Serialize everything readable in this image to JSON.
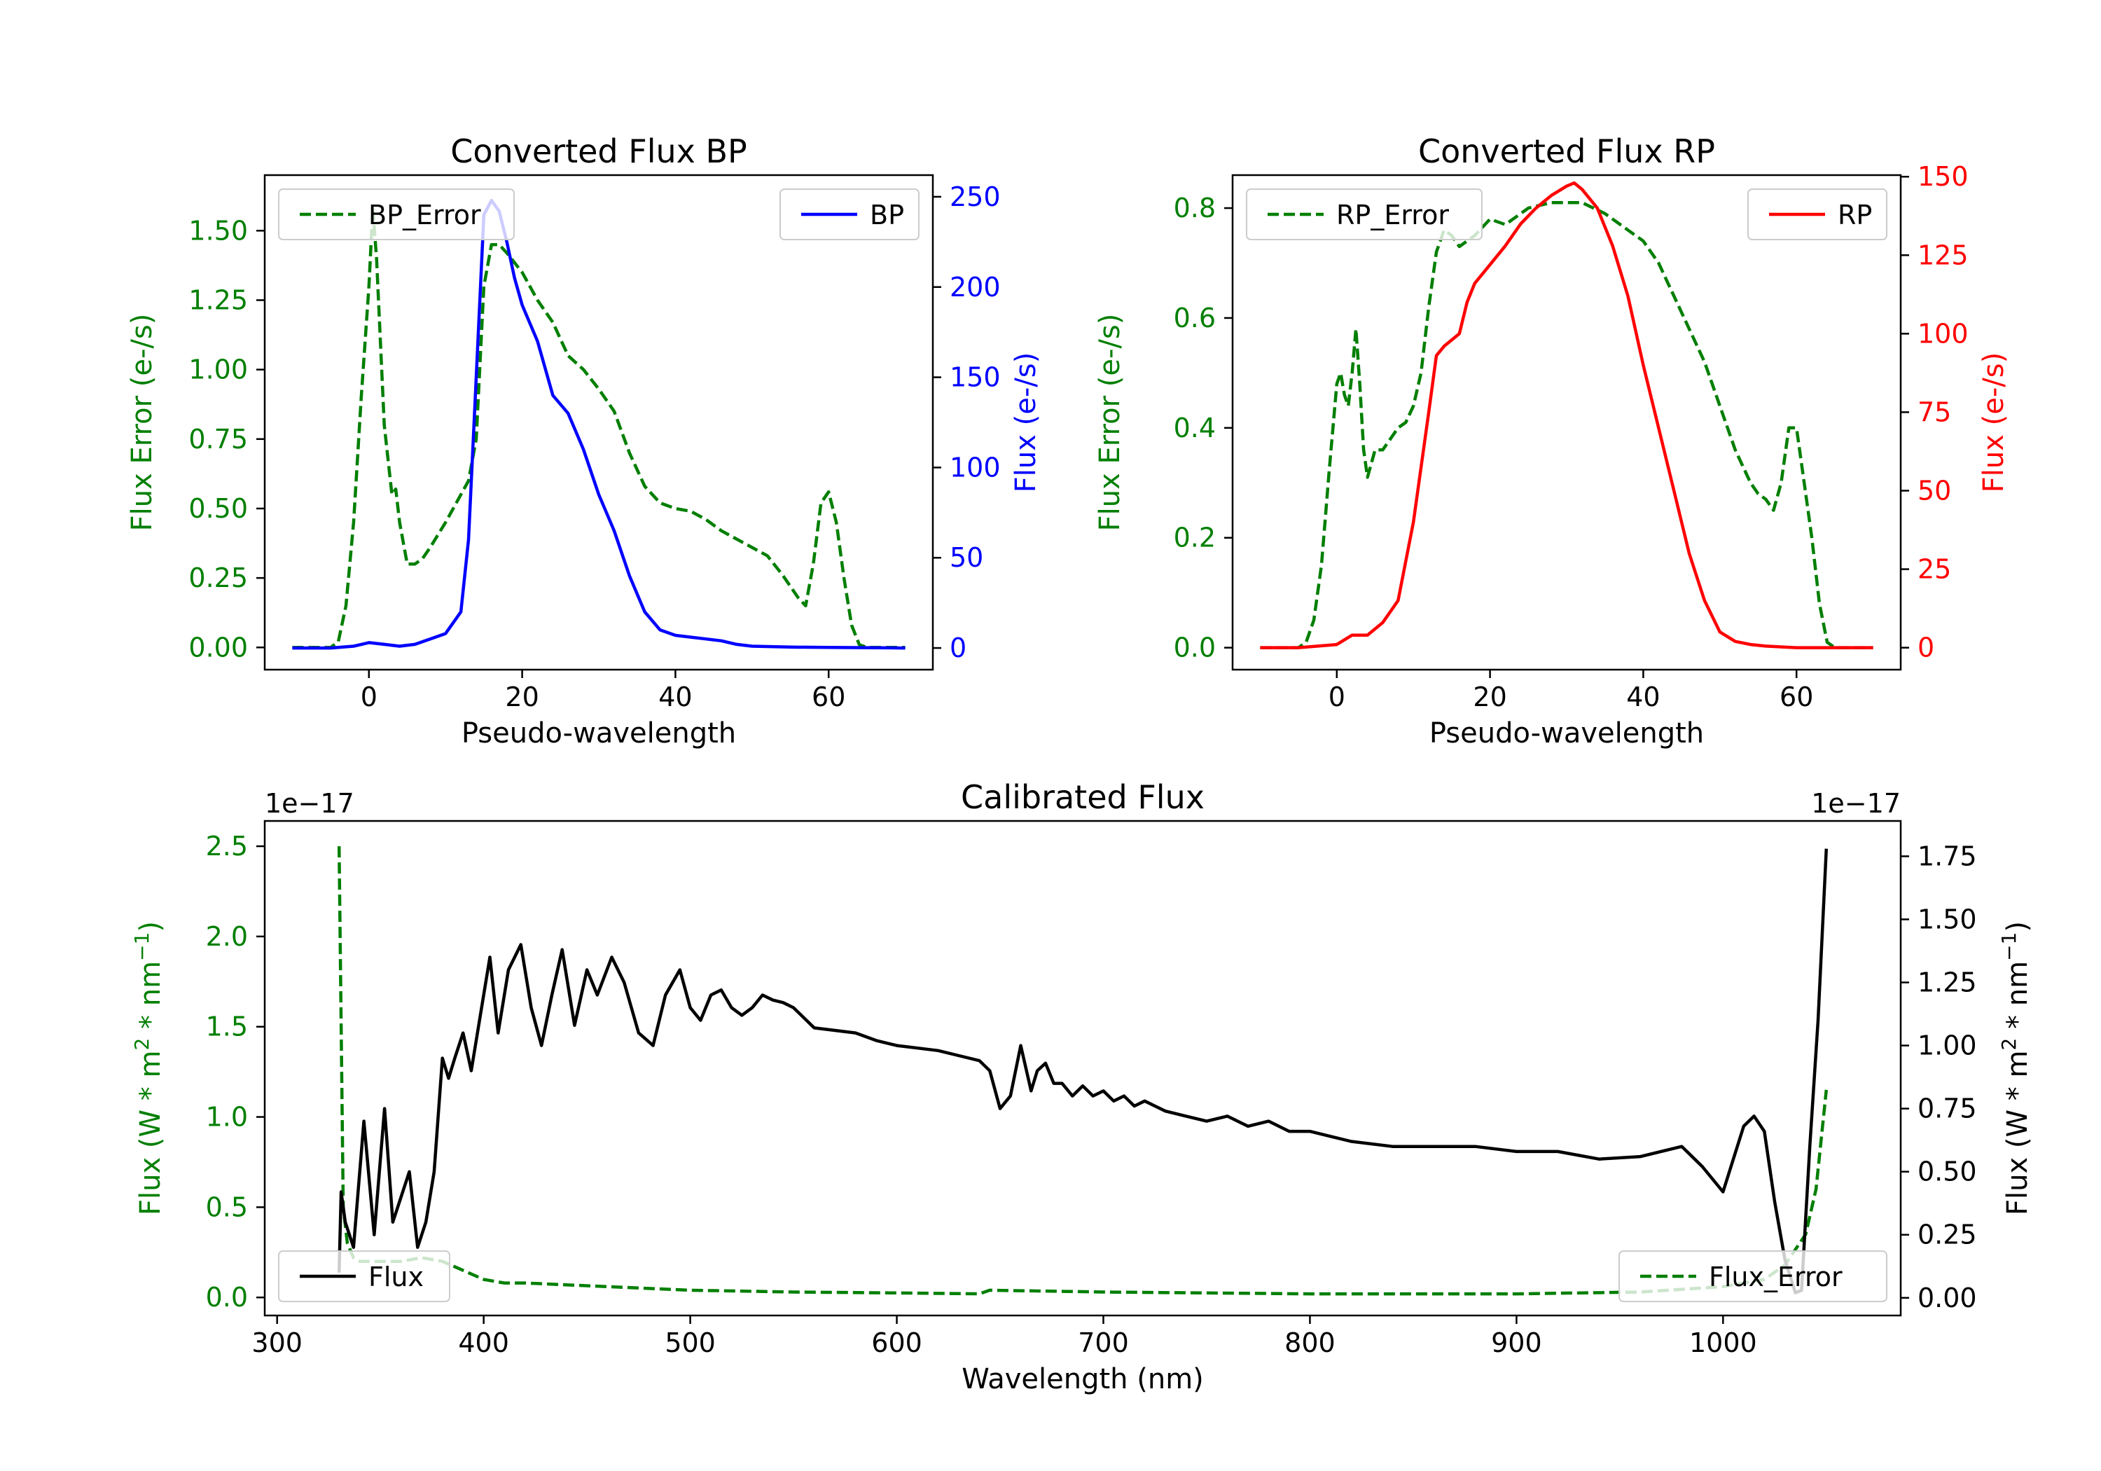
{
  "colors": {
    "green": "#007f00",
    "blue": "#0000ff",
    "red": "#ff0000",
    "black": "#000000",
    "axis": "#000000"
  },
  "chart_data": [
    {
      "id": "bp",
      "type": "line",
      "title": "Converted Flux BP",
      "xlabel": "Pseudo-wavelength",
      "xlim": [
        -13.6,
        73.6
      ],
      "xticks": [
        0,
        20,
        40,
        60
      ],
      "xtick_labels": [
        "0",
        "20",
        "40",
        "60"
      ],
      "left_axis": {
        "label": "Flux Error (e-/s)",
        "color": "green",
        "ylim": [
          -0.08,
          1.7
        ],
        "ticks": [
          0,
          0.25,
          0.5,
          0.75,
          1.0,
          1.25,
          1.5
        ],
        "tick_labels": [
          "0.00",
          "0.25",
          "0.50",
          "0.75",
          "1.00",
          "1.25",
          "1.50"
        ]
      },
      "right_axis": {
        "label": "Flux (e-/s)",
        "color": "blue",
        "ylim": [
          -12,
          262
        ],
        "ticks": [
          0,
          50,
          100,
          150,
          200,
          250
        ],
        "tick_labels": [
          "0",
          "50",
          "100",
          "150",
          "200",
          "250"
        ]
      },
      "series": [
        {
          "name": "BP_Error",
          "axis": "left",
          "style": "dashed",
          "color": "green",
          "x": [
            -10,
            -5,
            -4,
            -3,
            -2,
            -1,
            0,
            0.5,
            1,
            2,
            3,
            3.5,
            4,
            5,
            6,
            7,
            8,
            10,
            12,
            13,
            14,
            15,
            16,
            17,
            18,
            20,
            22,
            24,
            26,
            28,
            30,
            32,
            34,
            36,
            38,
            40,
            42,
            44,
            46,
            48,
            50,
            52,
            54,
            55,
            56,
            57,
            58,
            59,
            60,
            61,
            62,
            63,
            64,
            65,
            70
          ],
          "y": [
            0,
            0,
            0.02,
            0.15,
            0.45,
            0.9,
            1.3,
            1.58,
            1.4,
            0.8,
            0.55,
            0.57,
            0.45,
            0.3,
            0.3,
            0.32,
            0.36,
            0.45,
            0.55,
            0.6,
            0.75,
            1.3,
            1.45,
            1.45,
            1.42,
            1.35,
            1.25,
            1.17,
            1.05,
            1.0,
            0.93,
            0.85,
            0.7,
            0.58,
            0.52,
            0.5,
            0.49,
            0.46,
            0.42,
            0.39,
            0.36,
            0.33,
            0.26,
            0.22,
            0.18,
            0.15,
            0.3,
            0.52,
            0.56,
            0.45,
            0.25,
            0.08,
            0.01,
            0,
            0
          ]
        },
        {
          "name": "BP",
          "axis": "right",
          "style": "solid",
          "color": "blue",
          "x": [
            -10,
            -5,
            -2,
            0,
            2,
            4,
            6,
            8,
            10,
            12,
            13,
            14,
            15,
            16,
            17,
            18,
            19,
            20,
            22,
            24,
            25,
            26,
            28,
            30,
            32,
            34,
            36,
            38,
            40,
            42,
            44,
            46,
            48,
            50,
            55,
            60,
            65,
            70
          ],
          "y": [
            0,
            0,
            1,
            3,
            2,
            1,
            2,
            5,
            8,
            20,
            60,
            150,
            240,
            248,
            242,
            225,
            205,
            190,
            170,
            140,
            135,
            130,
            110,
            85,
            65,
            40,
            20,
            10,
            7,
            6,
            5,
            4,
            2,
            1,
            0.5,
            0.3,
            0.2,
            0
          ]
        }
      ],
      "legend": [
        {
          "label": "BP_Error",
          "placement": "upper-left"
        },
        {
          "label": "BP",
          "placement": "upper-right"
        }
      ]
    },
    {
      "id": "rp",
      "type": "line",
      "title": "Converted Flux RP",
      "xlabel": "Pseudo-wavelength",
      "xlim": [
        -13.6,
        73.6
      ],
      "xticks": [
        0,
        20,
        40,
        60
      ],
      "xtick_labels": [
        "0",
        "20",
        "40",
        "60"
      ],
      "left_axis": {
        "label": "Flux Error (e-/s)",
        "color": "green",
        "ylim": [
          -0.04,
          0.86
        ],
        "ticks": [
          0,
          0.2,
          0.4,
          0.6,
          0.8
        ],
        "tick_labels": [
          "0.0",
          "0.2",
          "0.4",
          "0.6",
          "0.8"
        ]
      },
      "right_axis": {
        "label": "Flux (e-/s)",
        "color": "red",
        "ylim": [
          -7,
          150.5
        ],
        "ticks": [
          0,
          25,
          50,
          75,
          100,
          125,
          150
        ],
        "tick_labels": [
          "0",
          "25",
          "50",
          "75",
          "100",
          "125",
          "150"
        ]
      },
      "series": [
        {
          "name": "RP_Error",
          "axis": "left",
          "style": "dashed",
          "color": "green",
          "x": [
            -10,
            -5,
            -4,
            -3,
            -2,
            -1,
            0,
            0.5,
            1,
            1.5,
            2,
            2.5,
            3,
            3.5,
            4,
            5,
            6,
            7,
            8,
            9,
            10,
            11,
            12,
            13,
            14,
            15,
            16,
            18,
            20,
            22,
            25,
            28,
            30,
            32,
            35,
            38,
            40,
            42,
            44,
            46,
            48,
            50,
            52,
            54,
            55,
            56,
            57,
            58,
            59,
            60,
            61,
            62,
            63,
            64,
            65,
            70
          ],
          "y": [
            0,
            0,
            0.01,
            0.05,
            0.15,
            0.32,
            0.48,
            0.5,
            0.46,
            0.44,
            0.5,
            0.58,
            0.48,
            0.36,
            0.31,
            0.36,
            0.36,
            0.38,
            0.4,
            0.41,
            0.44,
            0.5,
            0.62,
            0.72,
            0.76,
            0.75,
            0.73,
            0.75,
            0.78,
            0.77,
            0.8,
            0.81,
            0.81,
            0.81,
            0.79,
            0.76,
            0.74,
            0.7,
            0.64,
            0.58,
            0.52,
            0.44,
            0.36,
            0.3,
            0.28,
            0.27,
            0.25,
            0.3,
            0.4,
            0.4,
            0.3,
            0.2,
            0.08,
            0.01,
            0,
            0
          ]
        },
        {
          "name": "RP",
          "axis": "right",
          "style": "solid",
          "color": "red",
          "x": [
            -10,
            -5,
            0,
            2,
            4,
            6,
            8,
            10,
            12,
            13,
            14,
            16,
            17,
            18,
            20,
            22,
            24,
            26,
            28,
            30,
            31,
            32,
            34,
            36,
            38,
            40,
            42,
            44,
            46,
            48,
            50,
            52,
            54,
            56,
            60,
            65,
            70
          ],
          "y": [
            0,
            0,
            1,
            4,
            4,
            8,
            15,
            40,
            75,
            93,
            96,
            100,
            110,
            116,
            122,
            128,
            135,
            140,
            144,
            147,
            148,
            146,
            140,
            128,
            112,
            90,
            70,
            50,
            30,
            15,
            5,
            2,
            1,
            0.5,
            0,
            0,
            0
          ]
        }
      ],
      "legend": [
        {
          "label": "RP_Error",
          "placement": "upper-left"
        },
        {
          "label": "RP",
          "placement": "upper-right"
        }
      ]
    },
    {
      "id": "cal",
      "type": "line",
      "title": "Calibrated Flux",
      "xlabel": "Wavelength (nm)",
      "xlim": [
        294,
        1086
      ],
      "xticks": [
        300,
        400,
        500,
        600,
        700,
        800,
        900,
        1000
      ],
      "xtick_labels": [
        "300",
        "400",
        "500",
        "600",
        "700",
        "800",
        "900",
        "1000"
      ],
      "left_axis": {
        "label": "Flux (W * m2 * nm−1)",
        "label_parts": [
          "Flux (W * m",
          "2",
          " * nm",
          "−1",
          ")"
        ],
        "color": "green",
        "offset_text": "1e−17",
        "ylim": [
          -0.1,
          2.64
        ],
        "ticks": [
          0,
          0.5,
          1.0,
          1.5,
          2.0,
          2.5
        ],
        "tick_labels": [
          "0.0",
          "0.5",
          "1.0",
          "1.5",
          "2.0",
          "2.5"
        ]
      },
      "right_axis": {
        "label": "Flux (W * m2 * nm−1)",
        "label_parts": [
          "Flux (W * m",
          "2",
          " * nm",
          "−1",
          ")"
        ],
        "color": "black",
        "offset_text": "1e−17",
        "ylim": [
          -0.07,
          1.89
        ],
        "ticks": [
          0,
          0.25,
          0.5,
          0.75,
          1.0,
          1.25,
          1.5,
          1.75
        ],
        "tick_labels": [
          "0.00",
          "0.25",
          "0.50",
          "0.75",
          "1.00",
          "1.25",
          "1.50",
          "1.75"
        ]
      },
      "series": [
        {
          "name": "Flux_Error",
          "axis": "left",
          "style": "dashed",
          "color": "green",
          "x": [
            330,
            332,
            334,
            337,
            340,
            345,
            350,
            360,
            370,
            380,
            390,
            400,
            410,
            420,
            440,
            460,
            480,
            500,
            550,
            600,
            640,
            645,
            700,
            800,
            900,
            960,
            1000,
            1020,
            1030,
            1040,
            1045,
            1050
          ],
          "y": [
            2.5,
            0.5,
            0.3,
            0.22,
            0.2,
            0.2,
            0.2,
            0.2,
            0.22,
            0.2,
            0.15,
            0.1,
            0.08,
            0.08,
            0.07,
            0.06,
            0.05,
            0.04,
            0.03,
            0.025,
            0.02,
            0.04,
            0.03,
            0.02,
            0.02,
            0.03,
            0.06,
            0.1,
            0.18,
            0.35,
            0.6,
            1.15
          ]
        },
        {
          "name": "Flux",
          "axis": "right",
          "style": "solid",
          "color": "black",
          "x": [
            330,
            331,
            333,
            337,
            342,
            347,
            352,
            356,
            360,
            364,
            368,
            372,
            376,
            380,
            383,
            386,
            390,
            394,
            398,
            403,
            407,
            412,
            418,
            423,
            428,
            433,
            438,
            444,
            450,
            455,
            462,
            468,
            475,
            482,
            488,
            495,
            500,
            505,
            510,
            515,
            520,
            525,
            530,
            535,
            540,
            545,
            550,
            560,
            570,
            580,
            590,
            600,
            610,
            620,
            630,
            640,
            645,
            650,
            655,
            660,
            665,
            668,
            672,
            676,
            680,
            685,
            690,
            695,
            700,
            705,
            710,
            715,
            720,
            730,
            740,
            750,
            760,
            770,
            780,
            790,
            800,
            820,
            840,
            860,
            880,
            900,
            920,
            940,
            960,
            980,
            990,
            1000,
            1010,
            1015,
            1020,
            1025,
            1030,
            1035,
            1038,
            1042,
            1046,
            1050
          ],
          "y": [
            0.1,
            0.42,
            0.3,
            0.2,
            0.7,
            0.25,
            0.75,
            0.3,
            0.4,
            0.5,
            0.2,
            0.3,
            0.5,
            0.95,
            0.87,
            0.95,
            1.05,
            0.9,
            1.1,
            1.35,
            1.05,
            1.3,
            1.4,
            1.15,
            1.0,
            1.2,
            1.38,
            1.08,
            1.3,
            1.2,
            1.35,
            1.25,
            1.05,
            1.0,
            1.2,
            1.3,
            1.15,
            1.1,
            1.2,
            1.22,
            1.15,
            1.12,
            1.15,
            1.2,
            1.18,
            1.17,
            1.15,
            1.07,
            1.06,
            1.05,
            1.02,
            1.0,
            0.99,
            0.98,
            0.96,
            0.94,
            0.9,
            0.75,
            0.8,
            1.0,
            0.82,
            0.9,
            0.93,
            0.85,
            0.85,
            0.8,
            0.84,
            0.8,
            0.82,
            0.78,
            0.8,
            0.76,
            0.78,
            0.74,
            0.72,
            0.7,
            0.72,
            0.68,
            0.7,
            0.66,
            0.66,
            0.62,
            0.6,
            0.6,
            0.6,
            0.58,
            0.58,
            0.55,
            0.56,
            0.6,
            0.52,
            0.42,
            0.68,
            0.72,
            0.66,
            0.38,
            0.15,
            0.02,
            0.03,
            0.6,
            1.1,
            1.78
          ]
        }
      ],
      "legend": [
        {
          "label": "Flux",
          "placement": "lower-left"
        },
        {
          "label": "Flux_Error",
          "placement": "lower-right"
        }
      ]
    }
  ]
}
